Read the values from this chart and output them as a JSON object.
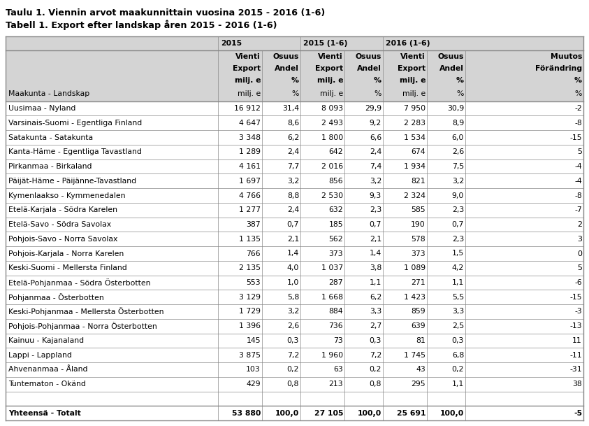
{
  "title_line1": "Taulu 1. Viennin arvot maakunnittain vuosina 2015 - 2016 (1-6)",
  "title_line2": "Tabell 1. Export efter landskap åren 2015 - 2016 (1-6)",
  "rows": [
    {
      "label": "Uusimaa - Nyland",
      "v2015": "16 912",
      "o2015": "31,4",
      "v1506": "8 093",
      "o1506": "29,9",
      "v1606": "7 950",
      "o1606": "30,9",
      "muutos": "-2"
    },
    {
      "label": "Varsinais-Suomi - Egentliga Finland",
      "v2015": "4 647",
      "o2015": "8,6",
      "v1506": "2 493",
      "o1506": "9,2",
      "v1606": "2 283",
      "o1606": "8,9",
      "muutos": "-8"
    },
    {
      "label": "Satakunta - Satakunta",
      "v2015": "3 348",
      "o2015": "6,2",
      "v1506": "1 800",
      "o1506": "6,6",
      "v1606": "1 534",
      "o1606": "6,0",
      "muutos": "-15"
    },
    {
      "label": "Kanta-Häme - Egentliga Tavastland",
      "v2015": "1 289",
      "o2015": "2,4",
      "v1506": "642",
      "o1506": "2,4",
      "v1606": "674",
      "o1606": "2,6",
      "muutos": "5"
    },
    {
      "label": "Pirkanmaa - Birkaland",
      "v2015": "4 161",
      "o2015": "7,7",
      "v1506": "2 016",
      "o1506": "7,4",
      "v1606": "1 934",
      "o1606": "7,5",
      "muutos": "-4"
    },
    {
      "label": "Päijät-Häme - Päijänne-Tavastland",
      "v2015": "1 697",
      "o2015": "3,2",
      "v1506": "856",
      "o1506": "3,2",
      "v1606": "821",
      "o1606": "3,2",
      "muutos": "-4"
    },
    {
      "label": "Kymenlaakso - Kymmenedalen",
      "v2015": "4 766",
      "o2015": "8,8",
      "v1506": "2 530",
      "o1506": "9,3",
      "v1606": "2 324",
      "o1606": "9,0",
      "muutos": "-8"
    },
    {
      "label": "Etelä-Karjala - Södra Karelen",
      "v2015": "1 277",
      "o2015": "2,4",
      "v1506": "632",
      "o1506": "2,3",
      "v1606": "585",
      "o1606": "2,3",
      "muutos": "-7"
    },
    {
      "label": "Etelä-Savo - Södra Savolax",
      "v2015": "387",
      "o2015": "0,7",
      "v1506": "185",
      "o1506": "0,7",
      "v1606": "190",
      "o1606": "0,7",
      "muutos": "2"
    },
    {
      "label": "Pohjois-Savo - Norra Savolax",
      "v2015": "1 135",
      "o2015": "2,1",
      "v1506": "562",
      "o1506": "2,1",
      "v1606": "578",
      "o1606": "2,3",
      "muutos": "3"
    },
    {
      "label": "Pohjois-Karjala - Norra Karelen",
      "v2015": "766",
      "o2015": "1,4",
      "v1506": "373",
      "o1506": "1,4",
      "v1606": "373",
      "o1606": "1,5",
      "muutos": "0"
    },
    {
      "label": "Keski-Suomi - Mellersta Finland",
      "v2015": "2 135",
      "o2015": "4,0",
      "v1506": "1 037",
      "o1506": "3,8",
      "v1606": "1 089",
      "o1606": "4,2",
      "muutos": "5"
    },
    {
      "label": "Etelä-Pohjanmaa - Södra Österbotten",
      "v2015": "553",
      "o2015": "1,0",
      "v1506": "287",
      "o1506": "1,1",
      "v1606": "271",
      "o1606": "1,1",
      "muutos": "-6"
    },
    {
      "label": "Pohjanmaa - Österbotten",
      "v2015": "3 129",
      "o2015": "5,8",
      "v1506": "1 668",
      "o1506": "6,2",
      "v1606": "1 423",
      "o1606": "5,5",
      "muutos": "-15"
    },
    {
      "label": "Keski-Pohjanmaa - Mellersta Österbotten",
      "v2015": "1 729",
      "o2015": "3,2",
      "v1506": "884",
      "o1506": "3,3",
      "v1606": "859",
      "o1606": "3,3",
      "muutos": "-3"
    },
    {
      "label": "Pohjois-Pohjanmaa - Norra Österbotten",
      "v2015": "1 396",
      "o2015": "2,6",
      "v1506": "736",
      "o1506": "2,7",
      "v1606": "639",
      "o1606": "2,5",
      "muutos": "-13"
    },
    {
      "label": "Kainuu - Kajanaland",
      "v2015": "145",
      "o2015": "0,3",
      "v1506": "73",
      "o1506": "0,3",
      "v1606": "81",
      "o1606": "0,3",
      "muutos": "11"
    },
    {
      "label": "Lappi - Lappland",
      "v2015": "3 875",
      "o2015": "7,2",
      "v1506": "1 960",
      "o1506": "7,2",
      "v1606": "1 745",
      "o1606": "6,8",
      "muutos": "-11"
    },
    {
      "label": "Ahvenanmaa - Åland",
      "v2015": "103",
      "o2015": "0,2",
      "v1506": "63",
      "o1506": "0,2",
      "v1606": "43",
      "o1606": "0,2",
      "muutos": "-31"
    },
    {
      "label": "Tuntematon - Okänd",
      "v2015": "429",
      "o2015": "0,8",
      "v1506": "213",
      "o1506": "0,8",
      "v1606": "295",
      "o1606": "1,1",
      "muutos": "38"
    }
  ],
  "total_label": "Yhteensä - Totalt",
  "total_v2015": "53 880",
  "total_o2015": "100,0",
  "total_v1506": "27 105",
  "total_o1506": "100,0",
  "total_v1606": "25 691",
  "total_o1606": "100,0",
  "total_muutos": "-5",
  "bg_color": "#ffffff",
  "border_color": "#888888",
  "header_bg": "#d4d4d4",
  "font_size": 7.8,
  "title_font_size": 9.2
}
